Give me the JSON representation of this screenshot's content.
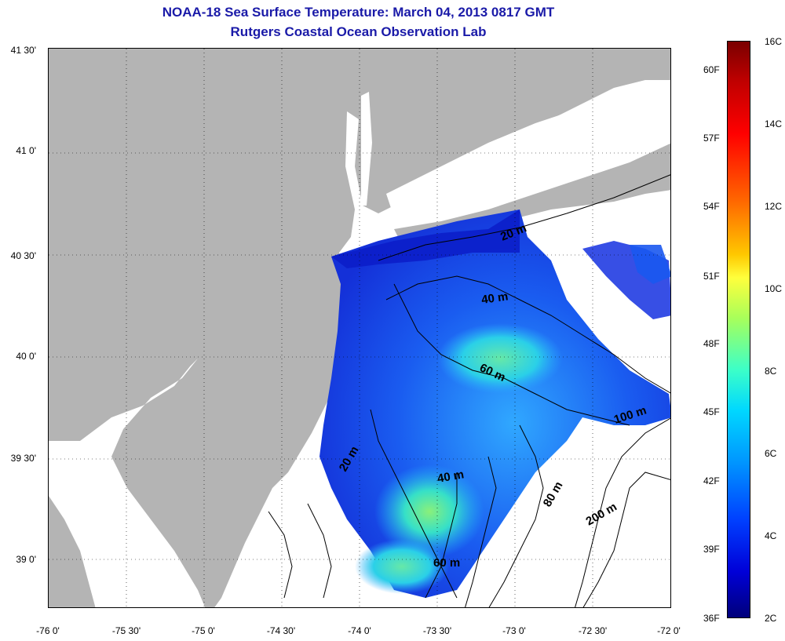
{
  "title": "NOAA-18 Sea Surface Temperature:  March 04, 2013 0817 GMT",
  "subtitle": "Rutgers Coastal Ocean Observation Lab",
  "lat_labels": [
    "41 30'",
    "41 0'",
    "40 30'",
    "40 0'",
    "39 30'",
    "39 0'"
  ],
  "lon_labels": [
    "-76 0'",
    "-75 30'",
    "-75 0'",
    "-74 30'",
    "-74 0'",
    "-73 30'",
    "-73 0'",
    "-72 30'",
    "-72 0'"
  ],
  "contours": [
    "20 m",
    "40 m",
    "60 m",
    "100 m",
    "20 m",
    "40 m",
    "60 m",
    "80 m",
    "200 m"
  ],
  "colorbar": {
    "fahrenheit": [
      "60F",
      "57F",
      "54F",
      "51F",
      "48F",
      "45F",
      "42F",
      "39F",
      "36F"
    ],
    "celsius": [
      "16C",
      "14C",
      "12C",
      "10C",
      "8C",
      "6C",
      "4C",
      "2C"
    ]
  },
  "colors": {
    "land": "#b4b4b4",
    "title": "#1a1aa8",
    "cold": "#1038e8",
    "warm": "#7ef07a"
  }
}
